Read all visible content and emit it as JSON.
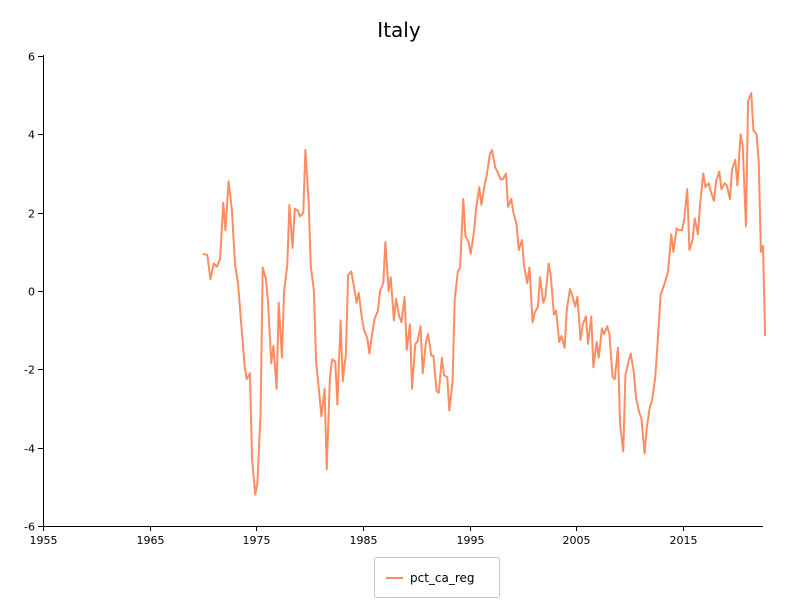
{
  "chart_data": {
    "type": "line",
    "title": "Italy",
    "xlabel": "",
    "ylabel": "",
    "xlim": [
      1955,
      2022.5
    ],
    "ylim": [
      -6,
      6
    ],
    "x_ticks": [
      1955,
      1965,
      1975,
      1985,
      1995,
      2005,
      2015
    ],
    "y_ticks": [
      -6,
      -4,
      -2,
      0,
      2,
      4,
      6
    ],
    "grid": false,
    "legend_position": "bottom-center",
    "series": [
      {
        "name": "pct_ca_reg",
        "color": "#fc8d62",
        "points": [
          [
            1970.0,
            0.95
          ],
          [
            1970.4,
            0.92
          ],
          [
            1970.7,
            0.3
          ],
          [
            1971.0,
            0.7
          ],
          [
            1971.3,
            0.62
          ],
          [
            1971.6,
            0.82
          ],
          [
            1971.9,
            2.25
          ],
          [
            1972.1,
            1.55
          ],
          [
            1972.4,
            2.8
          ],
          [
            1972.7,
            2.1
          ],
          [
            1973.0,
            0.7
          ],
          [
            1973.3,
            0.15
          ],
          [
            1973.6,
            -0.9
          ],
          [
            1973.9,
            -1.9
          ],
          [
            1974.1,
            -2.25
          ],
          [
            1974.4,
            -2.1
          ],
          [
            1974.6,
            -4.3
          ],
          [
            1974.9,
            -5.2
          ],
          [
            1975.1,
            -4.9
          ],
          [
            1975.4,
            -3.1
          ],
          [
            1975.6,
            0.6
          ],
          [
            1975.9,
            0.3
          ],
          [
            1976.1,
            -0.3
          ],
          [
            1976.4,
            -1.85
          ],
          [
            1976.6,
            -1.4
          ],
          [
            1976.9,
            -2.5
          ],
          [
            1977.1,
            -0.3
          ],
          [
            1977.4,
            -1.7
          ],
          [
            1977.6,
            0.0
          ],
          [
            1977.9,
            0.65
          ],
          [
            1978.1,
            2.2
          ],
          [
            1978.4,
            1.1
          ],
          [
            1978.6,
            2.1
          ],
          [
            1978.9,
            2.05
          ],
          [
            1979.1,
            1.9
          ],
          [
            1979.4,
            2.0
          ],
          [
            1979.6,
            3.6
          ],
          [
            1979.9,
            2.3
          ],
          [
            1980.1,
            0.65
          ],
          [
            1980.4,
            0.0
          ],
          [
            1980.6,
            -1.8
          ],
          [
            1980.9,
            -2.6
          ],
          [
            1981.1,
            -3.2
          ],
          [
            1981.4,
            -2.5
          ],
          [
            1981.6,
            -4.55
          ],
          [
            1981.9,
            -2.2
          ],
          [
            1982.1,
            -1.75
          ],
          [
            1982.4,
            -1.8
          ],
          [
            1982.6,
            -2.9
          ],
          [
            1982.9,
            -0.75
          ],
          [
            1983.1,
            -2.3
          ],
          [
            1983.4,
            -1.6
          ],
          [
            1983.6,
            0.4
          ],
          [
            1983.9,
            0.5
          ],
          [
            1984.1,
            0.2
          ],
          [
            1984.4,
            -0.3
          ],
          [
            1984.6,
            -0.05
          ],
          [
            1984.9,
            -0.7
          ],
          [
            1985.1,
            -1.0
          ],
          [
            1985.4,
            -1.2
          ],
          [
            1985.6,
            -1.6
          ],
          [
            1985.9,
            -1.0
          ],
          [
            1986.1,
            -0.7
          ],
          [
            1986.4,
            -0.5
          ],
          [
            1986.6,
            0.0
          ],
          [
            1986.9,
            0.2
          ],
          [
            1987.1,
            1.25
          ],
          [
            1987.4,
            0.0
          ],
          [
            1987.6,
            0.35
          ],
          [
            1987.9,
            -0.75
          ],
          [
            1988.1,
            -0.2
          ],
          [
            1988.4,
            -0.65
          ],
          [
            1988.6,
            -0.8
          ],
          [
            1988.9,
            -0.15
          ],
          [
            1989.1,
            -1.5
          ],
          [
            1989.4,
            -0.85
          ],
          [
            1989.6,
            -2.5
          ],
          [
            1989.9,
            -1.35
          ],
          [
            1990.1,
            -1.3
          ],
          [
            1990.4,
            -0.9
          ],
          [
            1990.6,
            -2.1
          ],
          [
            1990.9,
            -1.3
          ],
          [
            1991.1,
            -1.1
          ],
          [
            1991.4,
            -1.65
          ],
          [
            1991.6,
            -1.65
          ],
          [
            1991.9,
            -2.55
          ],
          [
            1992.1,
            -2.6
          ],
          [
            1992.4,
            -1.7
          ],
          [
            1992.6,
            -2.15
          ],
          [
            1992.9,
            -2.2
          ],
          [
            1993.1,
            -3.05
          ],
          [
            1993.4,
            -2.3
          ],
          [
            1993.6,
            -0.2
          ],
          [
            1993.9,
            0.5
          ],
          [
            1994.1,
            0.6
          ],
          [
            1994.4,
            2.35
          ],
          [
            1994.6,
            1.4
          ],
          [
            1994.9,
            1.25
          ],
          [
            1995.1,
            0.95
          ],
          [
            1995.4,
            1.5
          ],
          [
            1995.6,
            2.1
          ],
          [
            1995.9,
            2.65
          ],
          [
            1996.1,
            2.2
          ],
          [
            1996.4,
            2.7
          ],
          [
            1996.6,
            2.95
          ],
          [
            1996.9,
            3.5
          ],
          [
            1997.1,
            3.6
          ],
          [
            1997.4,
            3.15
          ],
          [
            1997.6,
            3.05
          ],
          [
            1997.9,
            2.85
          ],
          [
            1998.1,
            2.85
          ],
          [
            1998.4,
            3.0
          ],
          [
            1998.6,
            2.15
          ],
          [
            1998.9,
            2.35
          ],
          [
            1999.1,
            2.0
          ],
          [
            1999.4,
            1.7
          ],
          [
            1999.6,
            1.05
          ],
          [
            1999.9,
            1.3
          ],
          [
            2000.1,
            0.65
          ],
          [
            2000.4,
            0.2
          ],
          [
            2000.6,
            0.6
          ],
          [
            2000.9,
            -0.8
          ],
          [
            2001.1,
            -0.55
          ],
          [
            2001.4,
            -0.4
          ],
          [
            2001.6,
            0.35
          ],
          [
            2001.9,
            -0.3
          ],
          [
            2002.1,
            -0.15
          ],
          [
            2002.4,
            0.7
          ],
          [
            2002.6,
            0.4
          ],
          [
            2002.9,
            -0.6
          ],
          [
            2003.1,
            -0.5
          ],
          [
            2003.4,
            -1.3
          ],
          [
            2003.6,
            -1.15
          ],
          [
            2003.9,
            -1.45
          ],
          [
            2004.1,
            -0.5
          ],
          [
            2004.4,
            0.05
          ],
          [
            2004.6,
            -0.1
          ],
          [
            2004.9,
            -0.4
          ],
          [
            2005.1,
            -0.15
          ],
          [
            2005.4,
            -1.25
          ],
          [
            2005.6,
            -0.85
          ],
          [
            2005.9,
            -0.65
          ],
          [
            2006.1,
            -1.35
          ],
          [
            2006.4,
            -0.65
          ],
          [
            2006.6,
            -1.95
          ],
          [
            2006.9,
            -1.3
          ],
          [
            2007.1,
            -1.7
          ],
          [
            2007.4,
            -0.95
          ],
          [
            2007.6,
            -1.1
          ],
          [
            2007.9,
            -0.9
          ],
          [
            2008.1,
            -1.1
          ],
          [
            2008.4,
            -2.2
          ],
          [
            2008.6,
            -2.25
          ],
          [
            2008.9,
            -1.45
          ],
          [
            2009.1,
            -3.4
          ],
          [
            2009.4,
            -4.1
          ],
          [
            2009.6,
            -2.15
          ],
          [
            2009.9,
            -1.8
          ],
          [
            2010.1,
            -1.6
          ],
          [
            2010.4,
            -2.1
          ],
          [
            2010.6,
            -2.75
          ],
          [
            2010.9,
            -3.1
          ],
          [
            2011.1,
            -3.25
          ],
          [
            2011.4,
            -4.15
          ],
          [
            2011.6,
            -3.5
          ],
          [
            2011.9,
            -2.95
          ],
          [
            2012.1,
            -2.8
          ],
          [
            2012.4,
            -2.2
          ],
          [
            2012.6,
            -1.4
          ],
          [
            2012.9,
            -0.1
          ],
          [
            2013.1,
            0.05
          ],
          [
            2013.4,
            0.3
          ],
          [
            2013.6,
            0.5
          ],
          [
            2013.9,
            1.45
          ],
          [
            2014.1,
            1.0
          ],
          [
            2014.4,
            1.6
          ],
          [
            2014.6,
            1.55
          ],
          [
            2014.9,
            1.55
          ],
          [
            2015.1,
            1.8
          ],
          [
            2015.4,
            2.6
          ],
          [
            2015.6,
            1.05
          ],
          [
            2015.9,
            1.3
          ],
          [
            2016.1,
            1.85
          ],
          [
            2016.4,
            1.45
          ],
          [
            2016.6,
            2.2
          ],
          [
            2016.9,
            3.0
          ],
          [
            2017.1,
            2.65
          ],
          [
            2017.4,
            2.75
          ],
          [
            2017.6,
            2.55
          ],
          [
            2017.9,
            2.3
          ],
          [
            2018.1,
            2.8
          ],
          [
            2018.4,
            3.05
          ],
          [
            2018.6,
            2.6
          ],
          [
            2018.9,
            2.75
          ],
          [
            2019.1,
            2.7
          ],
          [
            2019.4,
            2.35
          ],
          [
            2019.6,
            3.1
          ],
          [
            2019.9,
            3.35
          ],
          [
            2020.1,
            2.7
          ],
          [
            2020.4,
            4.0
          ],
          [
            2020.6,
            3.7
          ],
          [
            2020.9,
            1.65
          ],
          [
            2021.1,
            4.85
          ],
          [
            2021.4,
            5.05
          ],
          [
            2021.6,
            4.1
          ],
          [
            2021.9,
            4.0
          ],
          [
            2022.1,
            3.3
          ],
          [
            2022.3,
            1.0
          ],
          [
            2022.5,
            1.15
          ],
          [
            2022.7,
            -1.15
          ]
        ]
      }
    ]
  }
}
